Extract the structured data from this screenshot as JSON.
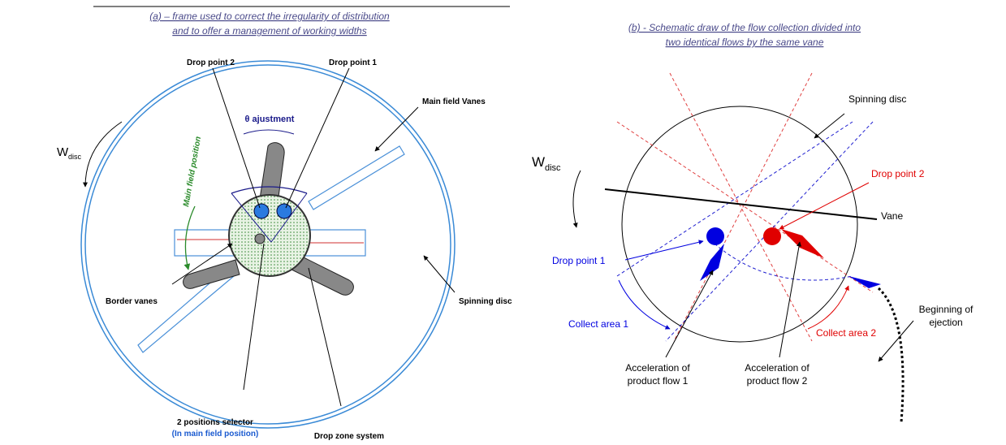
{
  "panel_a": {
    "title": [
      "(a) – frame used to correct the irregularity of distribution",
      "and to offer a management of working widths"
    ],
    "drop_point_2": "Drop point 2",
    "drop_point_1": "Drop point 1",
    "theta_label": "θ ajustment",
    "main_field_vanes": "Main field Vanes",
    "main_field_position": "Main field position",
    "w_symbol": "W",
    "w_subscript": "disc",
    "border_vanes": "Border vanes",
    "spinning_disc": "Spinning disc",
    "selector": [
      "2 positions selector",
      "(In main field position)"
    ],
    "drop_zone_system": "Drop zone system"
  },
  "panel_b": {
    "title": [
      "(b) - Schematic draw of the flow collection divided into",
      "two identical flows by the same vane"
    ],
    "spinning_disc": "Spinning disc",
    "w_symbol": "W",
    "w_subscript": "disc",
    "drop_point_2": "Drop point 2",
    "vane": "Vane",
    "drop_point_1": "Drop point 1",
    "collect_area_1": "Collect area 1",
    "collect_area_2": "Collect area 2",
    "ejection": [
      "Beginning of",
      "ejection"
    ],
    "flow_1": [
      "Acceleration of",
      "product flow 1"
    ],
    "flow_2": [
      "Acceleration of",
      "product flow 2"
    ]
  }
}
